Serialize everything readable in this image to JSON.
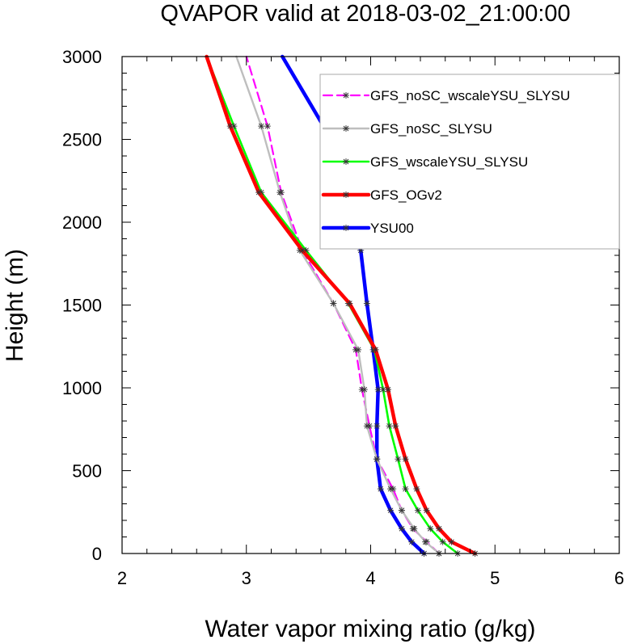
{
  "chart_data": {
    "type": "line",
    "title": "QVAPOR valid at 2018-03-02_21:00:00",
    "xlabel": "Water vapor mixing ratio (g/kg)",
    "ylabel": "Height (m)",
    "xlim": [
      2,
      6
    ],
    "ylim": [
      0,
      3000
    ],
    "xticks": [
      2,
      3,
      4,
      5,
      6
    ],
    "yticks": [
      0,
      500,
      1000,
      1500,
      2000,
      2500,
      3000
    ],
    "xtick_labels": [
      "2",
      "3",
      "4",
      "5",
      "6"
    ],
    "ytick_labels": [
      "0",
      "500",
      "1000",
      "1500",
      "2000",
      "2500",
      "3000"
    ],
    "legend_position": "top-right",
    "grid": false,
    "series": [
      {
        "name": "GFS_noSC_wscaleYSU_SLYSU",
        "color": "#ff00ff",
        "dash": true,
        "points": [
          [
            4.55,
            0
          ],
          [
            4.45,
            70
          ],
          [
            4.34,
            150
          ],
          [
            4.25,
            260
          ],
          [
            4.18,
            390
          ],
          [
            4.05,
            570
          ],
          [
            3.99,
            770
          ],
          [
            3.93,
            990
          ],
          [
            3.88,
            1230
          ],
          [
            3.7,
            1510
          ],
          [
            3.45,
            1830
          ],
          [
            3.28,
            2180
          ],
          [
            3.17,
            2580
          ],
          [
            3.0,
            3000
          ]
        ]
      },
      {
        "name": "GFS_noSC_SLYSU",
        "color": "#bebebe",
        "dash": false,
        "points": [
          [
            4.55,
            0
          ],
          [
            4.44,
            70
          ],
          [
            4.35,
            150
          ],
          [
            4.25,
            260
          ],
          [
            4.16,
            390
          ],
          [
            4.05,
            570
          ],
          [
            3.97,
            770
          ],
          [
            3.95,
            990
          ],
          [
            3.9,
            1230
          ],
          [
            3.7,
            1510
          ],
          [
            3.43,
            1830
          ],
          [
            3.27,
            2180
          ],
          [
            3.12,
            2580
          ],
          [
            2.92,
            3000
          ]
        ]
      },
      {
        "name": "GFS_wscaleYSU_SLYSU",
        "color": "#00ff00",
        "dash": false,
        "points": [
          [
            4.7,
            0
          ],
          [
            4.58,
            70
          ],
          [
            4.48,
            150
          ],
          [
            4.38,
            260
          ],
          [
            4.28,
            390
          ],
          [
            4.22,
            570
          ],
          [
            4.15,
            770
          ],
          [
            4.1,
            990
          ],
          [
            4.03,
            1230
          ],
          [
            3.82,
            1510
          ],
          [
            3.48,
            1830
          ],
          [
            3.12,
            2180
          ],
          [
            2.9,
            2580
          ],
          [
            2.68,
            3000
          ]
        ]
      },
      {
        "name": "GFS_OGv2",
        "color": "#ff0000",
        "dash": false,
        "points": [
          [
            4.84,
            0
          ],
          [
            4.65,
            70
          ],
          [
            4.55,
            150
          ],
          [
            4.45,
            260
          ],
          [
            4.37,
            390
          ],
          [
            4.28,
            570
          ],
          [
            4.2,
            770
          ],
          [
            4.14,
            990
          ],
          [
            4.04,
            1230
          ],
          [
            3.83,
            1510
          ],
          [
            3.45,
            1830
          ],
          [
            3.1,
            2180
          ],
          [
            2.87,
            2580
          ],
          [
            2.68,
            3000
          ]
        ]
      },
      {
        "name": "YSU00",
        "color": "#0000ff",
        "dash": false,
        "points": [
          [
            4.43,
            0
          ],
          [
            4.33,
            70
          ],
          [
            4.25,
            150
          ],
          [
            4.16,
            260
          ],
          [
            4.08,
            390
          ],
          [
            4.05,
            570
          ],
          [
            4.05,
            770
          ],
          [
            4.06,
            990
          ],
          [
            4.02,
            1230
          ],
          [
            3.97,
            1510
          ],
          [
            3.92,
            1830
          ],
          [
            3.8,
            2180
          ],
          [
            3.62,
            2580
          ],
          [
            3.29,
            3000
          ]
        ]
      }
    ]
  }
}
